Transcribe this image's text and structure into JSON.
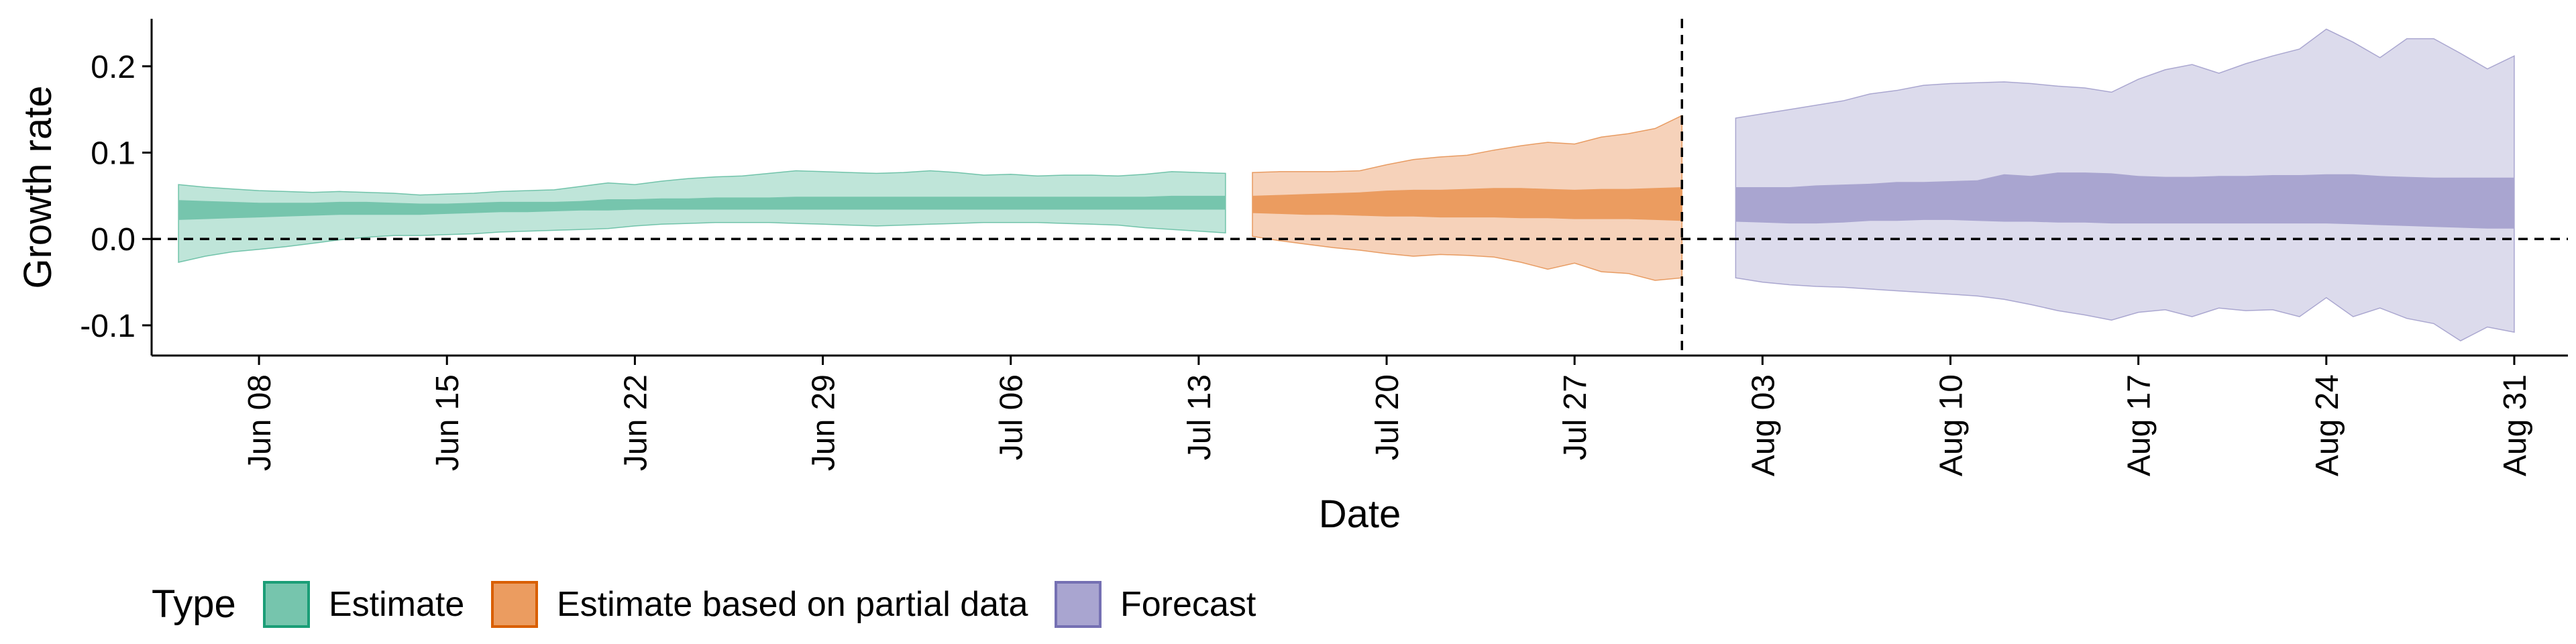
{
  "chart_data": {
    "type": "area",
    "xlabel": "Date",
    "ylabel": "Growth rate",
    "x_range": [
      "2020-06-04",
      "2020-09-02"
    ],
    "ylim": [
      -0.135,
      0.255
    ],
    "y_ticks": [
      {
        "value": 0.2,
        "label": "0.2"
      },
      {
        "value": 0.1,
        "label": "0.1"
      },
      {
        "value": 0.0,
        "label": "0.0"
      },
      {
        "value": -0.1,
        "label": "-0.1"
      }
    ],
    "x_ticks": [
      {
        "date": "2020-06-08",
        "label": "Jun 08"
      },
      {
        "date": "2020-06-15",
        "label": "Jun 15"
      },
      {
        "date": "2020-06-22",
        "label": "Jun 22"
      },
      {
        "date": "2020-06-29",
        "label": "Jun 29"
      },
      {
        "date": "2020-07-06",
        "label": "Jul 06"
      },
      {
        "date": "2020-07-13",
        "label": "Jul 13"
      },
      {
        "date": "2020-07-20",
        "label": "Jul 20"
      },
      {
        "date": "2020-07-27",
        "label": "Jul 27"
      },
      {
        "date": "2020-08-03",
        "label": "Aug 03"
      },
      {
        "date": "2020-08-10",
        "label": "Aug 10"
      },
      {
        "date": "2020-08-17",
        "label": "Aug 17"
      },
      {
        "date": "2020-08-24",
        "label": "Aug 24"
      },
      {
        "date": "2020-08-31",
        "label": "Aug 31"
      }
    ],
    "reference_lines": {
      "horizontal_y": 0.0,
      "vertical_date": "2020-07-31"
    },
    "grid": false,
    "legend": {
      "title": "Type",
      "position": "bottom-left",
      "entries": [
        {
          "name": "Estimate",
          "color": "#1B9E77"
        },
        {
          "name": "Estimate based on partial data",
          "color": "#D95F02"
        },
        {
          "name": "Forecast",
          "color": "#7570B3"
        }
      ]
    },
    "series": [
      {
        "name": "Estimate",
        "color": "#1B9E77",
        "outer_fill": "#BFE5D9",
        "inner_fill": "#76C5AD",
        "dates": [
          "2020-06-05",
          "2020-06-06",
          "2020-06-07",
          "2020-06-08",
          "2020-06-09",
          "2020-06-10",
          "2020-06-11",
          "2020-06-12",
          "2020-06-13",
          "2020-06-14",
          "2020-06-15",
          "2020-06-16",
          "2020-06-17",
          "2020-06-18",
          "2020-06-19",
          "2020-06-20",
          "2020-06-21",
          "2020-06-22",
          "2020-06-23",
          "2020-06-24",
          "2020-06-25",
          "2020-06-26",
          "2020-06-27",
          "2020-06-28",
          "2020-06-29",
          "2020-06-30",
          "2020-07-01",
          "2020-07-02",
          "2020-07-03",
          "2020-07-04",
          "2020-07-05",
          "2020-07-06",
          "2020-07-07",
          "2020-07-08",
          "2020-07-09",
          "2020-07-10",
          "2020-07-11",
          "2020-07-12",
          "2020-07-13",
          "2020-07-14"
        ],
        "upper90": [
          0.063,
          0.06,
          0.058,
          0.056,
          0.055,
          0.054,
          0.055,
          0.054,
          0.053,
          0.051,
          0.052,
          0.053,
          0.055,
          0.056,
          0.057,
          0.061,
          0.065,
          0.063,
          0.067,
          0.07,
          0.072,
          0.073,
          0.076,
          0.079,
          0.078,
          0.077,
          0.076,
          0.077,
          0.079,
          0.077,
          0.074,
          0.075,
          0.073,
          0.074,
          0.074,
          0.073,
          0.075,
          0.078,
          0.077,
          0.076
        ],
        "upper50": [
          0.045,
          0.044,
          0.043,
          0.042,
          0.042,
          0.042,
          0.043,
          0.043,
          0.042,
          0.041,
          0.041,
          0.042,
          0.043,
          0.043,
          0.043,
          0.044,
          0.046,
          0.046,
          0.047,
          0.047,
          0.048,
          0.048,
          0.048,
          0.049,
          0.049,
          0.049,
          0.049,
          0.049,
          0.049,
          0.049,
          0.049,
          0.049,
          0.049,
          0.049,
          0.049,
          0.049,
          0.049,
          0.05,
          0.05,
          0.05
        ],
        "lower50": [
          0.022,
          0.023,
          0.024,
          0.025,
          0.026,
          0.027,
          0.028,
          0.028,
          0.028,
          0.028,
          0.029,
          0.03,
          0.031,
          0.031,
          0.032,
          0.033,
          0.033,
          0.034,
          0.034,
          0.034,
          0.034,
          0.034,
          0.034,
          0.034,
          0.034,
          0.034,
          0.034,
          0.034,
          0.034,
          0.034,
          0.034,
          0.034,
          0.034,
          0.034,
          0.034,
          0.034,
          0.034,
          0.034,
          0.034,
          0.034
        ],
        "lower90": [
          -0.027,
          -0.02,
          -0.015,
          -0.012,
          -0.009,
          -0.005,
          -0.001,
          0.002,
          0.004,
          0.004,
          0.005,
          0.006,
          0.008,
          0.009,
          0.01,
          0.011,
          0.012,
          0.015,
          0.017,
          0.018,
          0.019,
          0.019,
          0.019,
          0.018,
          0.017,
          0.016,
          0.015,
          0.016,
          0.017,
          0.018,
          0.019,
          0.019,
          0.019,
          0.018,
          0.017,
          0.016,
          0.013,
          0.011,
          0.009,
          0.007
        ]
      },
      {
        "name": "Estimate based on partial data",
        "color": "#D95F02",
        "outer_fill": "#F6D2BA",
        "inner_fill": "#EB9C60",
        "dates": [
          "2020-07-15",
          "2020-07-16",
          "2020-07-17",
          "2020-07-18",
          "2020-07-19",
          "2020-07-20",
          "2020-07-21",
          "2020-07-22",
          "2020-07-23",
          "2020-07-24",
          "2020-07-25",
          "2020-07-26",
          "2020-07-27",
          "2020-07-28",
          "2020-07-29",
          "2020-07-30",
          "2020-07-31"
        ],
        "upper90": [
          0.077,
          0.078,
          0.078,
          0.078,
          0.079,
          0.086,
          0.092,
          0.095,
          0.097,
          0.103,
          0.108,
          0.112,
          0.11,
          0.118,
          0.122,
          0.128,
          0.143
        ],
        "upper50": [
          0.05,
          0.051,
          0.052,
          0.053,
          0.054,
          0.056,
          0.057,
          0.057,
          0.058,
          0.059,
          0.059,
          0.058,
          0.057,
          0.058,
          0.058,
          0.059,
          0.06
        ],
        "lower50": [
          0.03,
          0.029,
          0.028,
          0.028,
          0.027,
          0.026,
          0.026,
          0.025,
          0.025,
          0.025,
          0.024,
          0.024,
          0.023,
          0.023,
          0.023,
          0.022,
          0.021
        ],
        "lower90": [
          0.003,
          -0.002,
          -0.006,
          -0.01,
          -0.013,
          -0.017,
          -0.02,
          -0.018,
          -0.019,
          -0.021,
          -0.027,
          -0.035,
          -0.028,
          -0.038,
          -0.04,
          -0.048,
          -0.045
        ]
      },
      {
        "name": "Forecast",
        "color": "#7570B3",
        "outer_fill": "#DCDBEC",
        "inner_fill": "#A9A5D0",
        "dates": [
          "2020-08-02",
          "2020-08-03",
          "2020-08-04",
          "2020-08-05",
          "2020-08-06",
          "2020-08-07",
          "2020-08-08",
          "2020-08-09",
          "2020-08-10",
          "2020-08-11",
          "2020-08-12",
          "2020-08-13",
          "2020-08-14",
          "2020-08-15",
          "2020-08-16",
          "2020-08-17",
          "2020-08-18",
          "2020-08-19",
          "2020-08-20",
          "2020-08-21",
          "2020-08-22",
          "2020-08-23",
          "2020-08-24",
          "2020-08-25",
          "2020-08-26",
          "2020-08-27",
          "2020-08-28",
          "2020-08-29",
          "2020-08-30",
          "2020-08-31"
        ],
        "upper90": [
          0.14,
          0.145,
          0.15,
          0.155,
          0.16,
          0.168,
          0.172,
          0.178,
          0.18,
          0.181,
          0.182,
          0.18,
          0.177,
          0.175,
          0.17,
          0.185,
          0.196,
          0.202,
          0.192,
          0.203,
          0.212,
          0.22,
          0.243,
          0.228,
          0.21,
          0.232,
          0.232,
          0.215,
          0.197,
          0.212
        ],
        "upper50": [
          0.06,
          0.06,
          0.06,
          0.062,
          0.063,
          0.064,
          0.066,
          0.066,
          0.067,
          0.068,
          0.075,
          0.073,
          0.077,
          0.077,
          0.076,
          0.073,
          0.072,
          0.072,
          0.073,
          0.073,
          0.074,
          0.074,
          0.075,
          0.075,
          0.073,
          0.072,
          0.071,
          0.071,
          0.071,
          0.071
        ],
        "lower50": [
          0.02,
          0.019,
          0.018,
          0.018,
          0.019,
          0.021,
          0.021,
          0.022,
          0.022,
          0.021,
          0.02,
          0.02,
          0.019,
          0.019,
          0.018,
          0.018,
          0.018,
          0.018,
          0.018,
          0.018,
          0.018,
          0.018,
          0.018,
          0.017,
          0.016,
          0.015,
          0.014,
          0.013,
          0.012,
          0.012
        ],
        "lower90": [
          -0.045,
          -0.05,
          -0.053,
          -0.055,
          -0.056,
          -0.058,
          -0.06,
          -0.062,
          -0.064,
          -0.066,
          -0.07,
          -0.076,
          -0.083,
          -0.088,
          -0.094,
          -0.085,
          -0.082,
          -0.09,
          -0.08,
          -0.083,
          -0.082,
          -0.09,
          -0.068,
          -0.09,
          -0.08,
          -0.092,
          -0.098,
          -0.118,
          -0.102,
          -0.108
        ]
      }
    ]
  }
}
